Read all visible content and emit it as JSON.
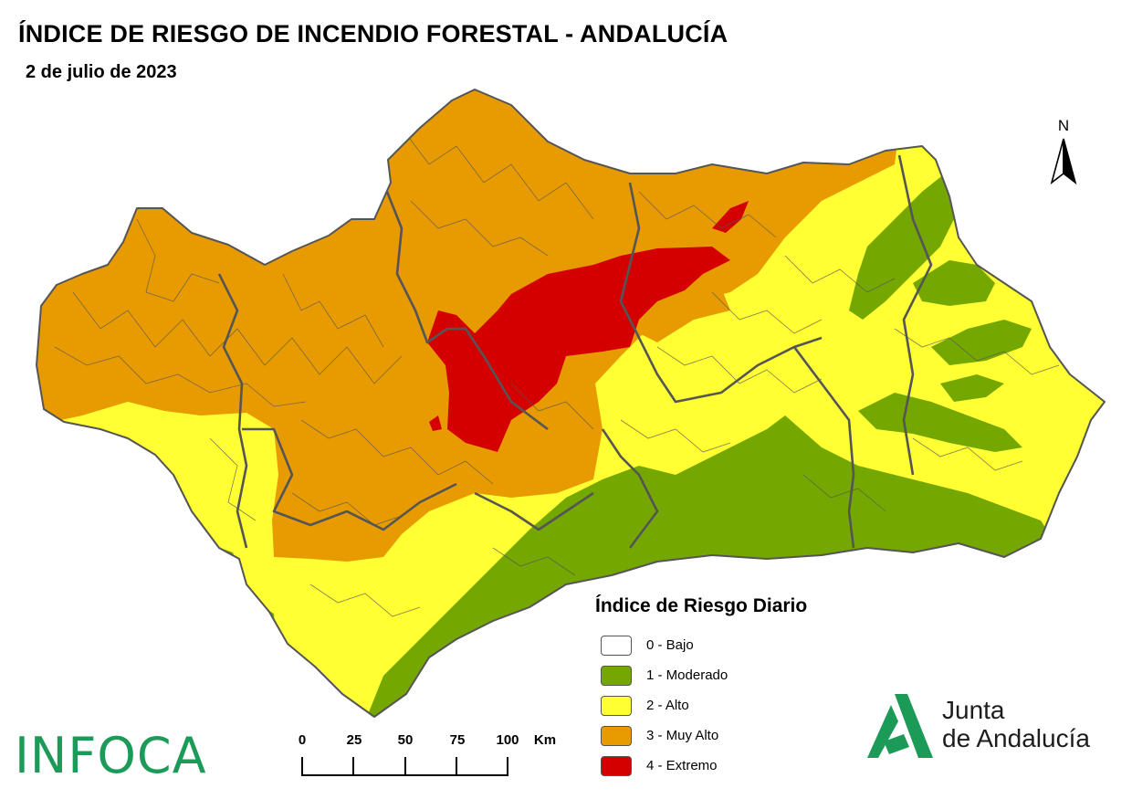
{
  "title": "ÍNDICE DE RIESGO DE INCENDIO FORESTAL - ANDALUCÍA",
  "date": "2 de julio de 2023",
  "north_label": "N",
  "legend": {
    "title": "Índice de Riesgo Diario",
    "items": [
      {
        "label": "0 - Bajo",
        "color": "#ffffff"
      },
      {
        "label": "1 - Moderado",
        "color": "#74a700"
      },
      {
        "label": "2 - Alto",
        "color": "#ffff33"
      },
      {
        "label": "3 - Muy Alto",
        "color": "#e89b00"
      },
      {
        "label": "4 - Extremo",
        "color": "#d40000"
      }
    ]
  },
  "scale": {
    "labels": [
      "0",
      "25",
      "50",
      "75",
      "100"
    ],
    "unit": "Km"
  },
  "logos": {
    "infoca": "INFOCA",
    "junta_line1": "Junta",
    "junta_line2": "de Andalucía"
  }
}
